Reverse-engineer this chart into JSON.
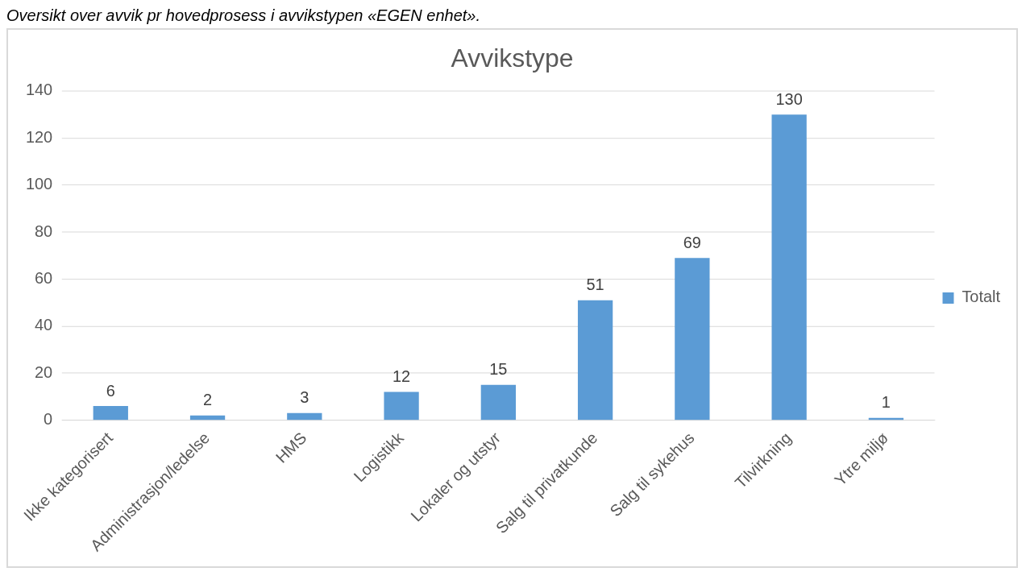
{
  "chart_data": {
    "type": "bar",
    "title": "Avvikstype",
    "annotations": [
      "Oversikt over avvik pr hovedprosess i avvikstypen «EGEN enhet»."
    ],
    "categories": [
      "Ikke kategorisert",
      "Administrasjon/ledelse",
      "HMS",
      "Logistikk",
      "Lokaler og utstyr",
      "Salg til privatkunde",
      "Salg til sykehus",
      "Tilvirkning",
      "Ytre miljø"
    ],
    "series": [
      {
        "name": "Totalt",
        "color": "#5b9bd5",
        "values": [
          6,
          2,
          3,
          12,
          15,
          51,
          69,
          130,
          1
        ]
      }
    ],
    "ylim": [
      0,
      140
    ],
    "yticks": [
      0,
      20,
      40,
      60,
      80,
      100,
      120,
      140
    ],
    "grid": "y",
    "legend": "right",
    "data_labels": true
  }
}
